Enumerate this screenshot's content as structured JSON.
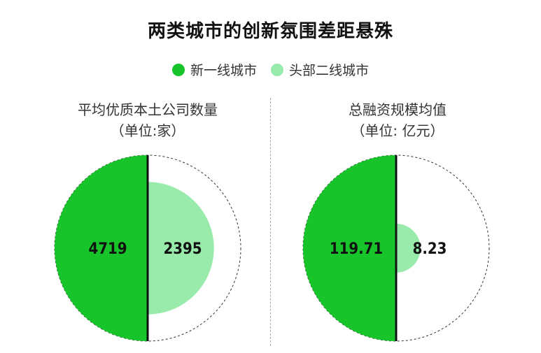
{
  "header": {
    "title": "两类城市的创新氛围差距悬殊"
  },
  "legend": {
    "items": [
      {
        "label": "新一线城市",
        "color": "#17c42a"
      },
      {
        "label": "头部二线城市",
        "color": "#98ebaa"
      }
    ]
  },
  "chart_data": [
    {
      "type": "pie",
      "title": "平均优质本土公司数量",
      "subtitle": "（单位:家）",
      "series": [
        {
          "name": "新一线城市",
          "value": 4719,
          "label": "4719",
          "color": "#17c42a"
        },
        {
          "name": "头部二线城市",
          "value": 2395,
          "label": "2395",
          "color": "#98ebaa"
        }
      ]
    },
    {
      "type": "pie",
      "title": "总融资规模均值",
      "subtitle": "（单位: 亿元）",
      "series": [
        {
          "name": "新一线城市",
          "value": 119.71,
          "label": "119.71",
          "color": "#17c42a"
        },
        {
          "name": "头部二线城市",
          "value": 8.23,
          "label": "8.23",
          "color": "#98ebaa"
        }
      ]
    }
  ]
}
